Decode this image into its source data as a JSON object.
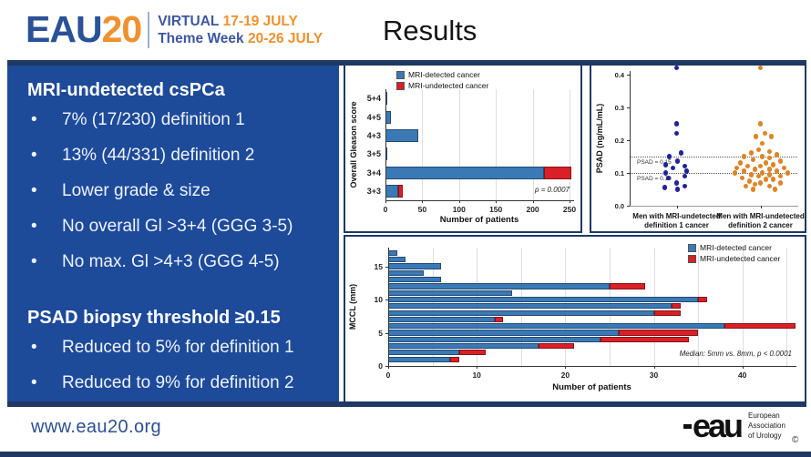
{
  "header": {
    "logo_eau": "EAU",
    "logo_20": "20",
    "virtual_label": "VIRTUAL",
    "virtual_dates": "17-19 JULY",
    "week_label": "Theme Week",
    "week_dates": "20-26 JULY",
    "title": "Results"
  },
  "left_panel": {
    "heading1": "MRI-undetected csPCa",
    "bullets1": [
      "7% (17/230) definition 1",
      "13% (44/331) definition 2",
      "Lower grade & size",
      "No overall Gl >3+4 (GGG 3-5)",
      "No max. Gl >4+3 (GGG 4-5)"
    ],
    "heading2": "PSAD biopsy threshold ≥0.15",
    "bullets2": [
      "Reduced to 5% for definition 1",
      "Reduced to 9% for definition 2"
    ]
  },
  "footer": {
    "url": "www.eau20.org",
    "eau_logo": "eau",
    "org_lines": [
      "European",
      "Association",
      "of Urology"
    ],
    "copyright": "©"
  },
  "colors": {
    "panel_blue": "#1d4a99",
    "navy": "#1f3864",
    "bar_blue": "#3a79b6",
    "bar_red": "#d92026",
    "dot_blue": "#22229b",
    "dot_orange": "#dd8427",
    "logo_blue": "#2b5197",
    "logo_orange": "#f0912f",
    "gridline": "#dedede"
  },
  "chart_data": [
    {
      "id": "gleason",
      "type": "bar",
      "orientation": "horizontal",
      "stacked": true,
      "ylabel": "Overall Gleason score",
      "xlabel": "Number of patients",
      "categories": [
        "3+3",
        "3+4",
        "3+5",
        "4+3",
        "4+5",
        "5+4"
      ],
      "series": [
        {
          "name": "MRI-detected cancer",
          "color": "#3a79b6",
          "values": [
            17,
            215,
            1,
            44,
            7,
            3
          ]
        },
        {
          "name": "MRI-undetected cancer",
          "color": "#d92026",
          "values": [
            7,
            38,
            0,
            0,
            0,
            0
          ]
        }
      ],
      "xticks": [
        0,
        50,
        100,
        150,
        200,
        250
      ],
      "xlim": [
        0,
        255
      ],
      "legend_position": "top-left",
      "grid": true,
      "annotation": "p = 0.0007"
    },
    {
      "id": "psad",
      "type": "scatter",
      "ylabel": "PSAD (ng/mL/mL)",
      "yticks": [
        0.0,
        0.1,
        0.2,
        0.3,
        0.4
      ],
      "ylim": [
        0,
        0.41
      ],
      "reference_lines": [
        {
          "y": 0.15,
          "label": "PSAD = 0.15"
        },
        {
          "y": 0.1,
          "label": "PSAD = 0.10"
        }
      ],
      "groups": [
        {
          "label_lines": [
            "Men with MRI-undetected",
            "definition 1 cancer"
          ],
          "color": "#22229b",
          "points": [
            [
              0,
              0.42
            ],
            [
              0,
              0.25
            ],
            [
              0,
              0.22
            ],
            [
              5,
              0.16
            ],
            [
              -8,
              0.15
            ],
            [
              1,
              0.135
            ],
            [
              -12,
              0.125
            ],
            [
              9,
              0.12
            ],
            [
              -4,
              0.115
            ],
            [
              11,
              0.105
            ],
            [
              -12,
              0.1
            ],
            [
              9,
              0.09
            ],
            [
              -9,
              0.085
            ],
            [
              0,
              0.07
            ],
            [
              9,
              0.06
            ],
            [
              -13,
              0.055
            ],
            [
              1,
              0.05
            ]
          ]
        },
        {
          "label_lines": [
            "Men with MRI-undetected",
            "definition 2 cancer"
          ],
          "color": "#dd8427",
          "points": [
            [
              0,
              0.42
            ],
            [
              0,
              0.25
            ],
            [
              5,
              0.22
            ],
            [
              -5,
              0.21
            ],
            [
              12,
              0.21
            ],
            [
              2,
              0.19
            ],
            [
              -2,
              0.17
            ],
            [
              10,
              0.165
            ],
            [
              -10,
              0.16
            ],
            [
              18,
              0.155
            ],
            [
              -18,
              0.15
            ],
            [
              2,
              0.15
            ],
            [
              10,
              0.145
            ],
            [
              -8,
              0.14
            ],
            [
              22,
              0.135
            ],
            [
              -22,
              0.13
            ],
            [
              6,
              0.13
            ],
            [
              14,
              0.125
            ],
            [
              -14,
              0.12
            ],
            [
              0,
              0.12
            ],
            [
              26,
              0.115
            ],
            [
              -26,
              0.115
            ],
            [
              10,
              0.11
            ],
            [
              -6,
              0.11
            ],
            [
              18,
              0.105
            ],
            [
              -18,
              0.105
            ],
            [
              2,
              0.1
            ],
            [
              30,
              0.1
            ],
            [
              -28,
              0.1
            ],
            [
              10,
              0.095
            ],
            [
              -10,
              0.095
            ],
            [
              22,
              0.09
            ],
            [
              -2,
              0.09
            ],
            [
              -20,
              0.085
            ],
            [
              6,
              0.08
            ],
            [
              14,
              0.08
            ],
            [
              -12,
              0.075
            ],
            [
              0,
              0.07
            ],
            [
              22,
              0.07
            ],
            [
              -6,
              0.065
            ],
            [
              10,
              0.06
            ],
            [
              -16,
              0.06
            ],
            [
              16,
              0.05
            ],
            [
              -8,
              0.05
            ]
          ]
        }
      ]
    },
    {
      "id": "mccl",
      "type": "bar",
      "orientation": "horizontal",
      "stacked": true,
      "ylabel": "MCCL (mm)",
      "xlabel": "Number of patients",
      "categories": [
        1,
        2,
        3,
        4,
        5,
        6,
        7,
        8,
        9,
        10,
        11,
        12,
        13,
        14,
        15,
        16,
        17
      ],
      "series": [
        {
          "name": "MRI-detected cancer",
          "color": "#3a79b6",
          "values": [
            7,
            8,
            17,
            24,
            26,
            38,
            12,
            30,
            32,
            35,
            14,
            25,
            6,
            4,
            6,
            2,
            1
          ]
        },
        {
          "name": "MRI-undetected cancer",
          "color": "#d92026",
          "values": [
            1,
            3,
            4,
            10,
            9,
            8,
            1,
            3,
            1,
            1,
            0,
            4,
            0,
            0,
            0,
            0,
            0
          ]
        }
      ],
      "yticks": [
        0,
        5,
        10,
        15
      ],
      "xticks": [
        0,
        10,
        20,
        30,
        40
      ],
      "xlim": [
        0,
        46
      ],
      "legend_position": "top-right",
      "grid": true,
      "annotation": "Median: 5mm vs. 8mm, p < 0.0001"
    }
  ]
}
